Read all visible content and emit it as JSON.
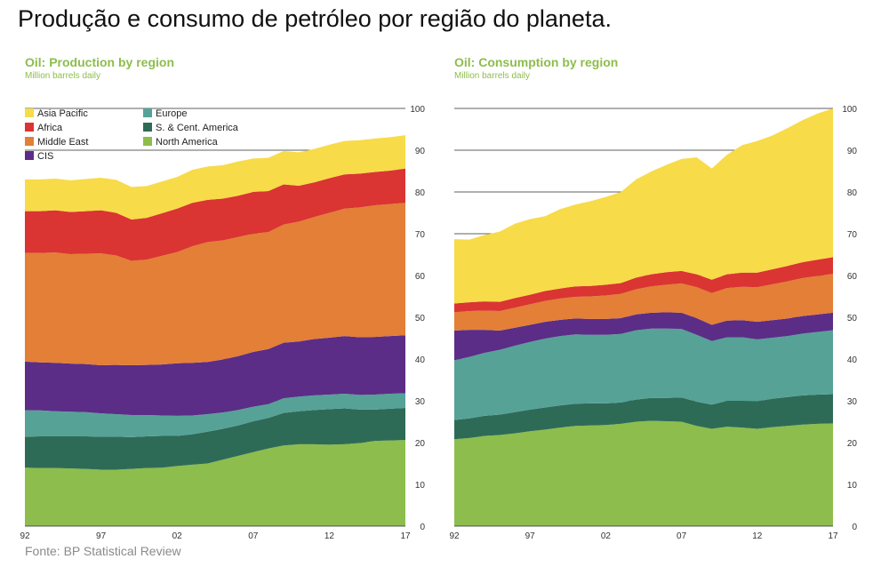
{
  "page": {
    "title": "Produção e consumo de petróleo por região do planeta.",
    "source": "Fonte: BP Statistical Review",
    "title_color": "#8DBD4C",
    "subtitle_color": "#8DBD4C"
  },
  "chart_data": [
    {
      "type": "area",
      "title": "Oil: Production by region",
      "subtitle": "Million barrels daily",
      "x": [
        1992,
        1993,
        1994,
        1995,
        1996,
        1997,
        1998,
        1999,
        2000,
        2001,
        2002,
        2003,
        2004,
        2005,
        2006,
        2007,
        2008,
        2009,
        2010,
        2011,
        2012,
        2013,
        2014,
        2015,
        2016,
        2017
      ],
      "x_tick_labels": [
        "92",
        "97",
        "02",
        "07",
        "12",
        "17"
      ],
      "x_tick_values": [
        1992,
        1997,
        2002,
        2007,
        2012,
        2017
      ],
      "ylim": [
        0,
        100
      ],
      "y_ticks": [
        0,
        10,
        20,
        30,
        40,
        50,
        60,
        70,
        80,
        90,
        100
      ],
      "y_axis_side": "right",
      "stacked": true,
      "legend_placement": "top-left",
      "legend_columns": [
        [
          "Asia Pacific",
          "Africa",
          "Middle East",
          "CIS"
        ],
        [
          "Europe",
          "S. & Cent. America",
          "North America"
        ]
      ],
      "series": [
        {
          "name": "North America",
          "color": "#8DBD4C",
          "values": [
            14.0,
            13.9,
            13.9,
            13.8,
            13.7,
            13.5,
            13.5,
            13.7,
            13.9,
            14.0,
            14.4,
            14.7,
            15.0,
            15.9,
            16.8,
            17.7,
            18.6,
            19.3,
            19.6,
            19.6,
            19.5,
            19.6,
            19.9,
            20.4,
            20.5,
            20.6
          ]
        },
        {
          "name": "S. & Cent. America",
          "color": "#2E6B57",
          "values": [
            7.4,
            7.6,
            7.6,
            7.7,
            7.8,
            7.9,
            7.9,
            7.6,
            7.6,
            7.6,
            7.2,
            7.3,
            7.6,
            7.4,
            7.3,
            7.4,
            7.3,
            7.8,
            7.9,
            8.2,
            8.5,
            8.6,
            8.0,
            7.5,
            7.6,
            7.7
          ]
        },
        {
          "name": "Europe",
          "color": "#56A297",
          "values": [
            6.3,
            6.2,
            6.0,
            5.9,
            5.8,
            5.6,
            5.4,
            5.3,
            5.1,
            4.9,
            4.8,
            4.5,
            4.2,
            3.9,
            3.7,
            3.5,
            3.3,
            3.5,
            3.5,
            3.5,
            3.5,
            3.5,
            3.5,
            3.6,
            3.6,
            3.5
          ]
        },
        {
          "name": "CIS",
          "color": "#5B2D87",
          "values": [
            11.7,
            11.5,
            11.6,
            11.5,
            11.5,
            11.5,
            11.8,
            11.9,
            12.0,
            12.2,
            12.6,
            12.6,
            12.5,
            12.7,
            12.9,
            13.1,
            13.2,
            13.3,
            13.2,
            13.5,
            13.6,
            13.8,
            13.8,
            13.8,
            13.8,
            13.9
          ]
        },
        {
          "name": "Middle East",
          "color": "#E37F36",
          "values": [
            26.0,
            26.2,
            26.4,
            26.2,
            26.4,
            26.8,
            26.2,
            25.0,
            25.2,
            26.0,
            26.6,
            27.9,
            28.7,
            28.5,
            28.5,
            28.3,
            28.0,
            28.3,
            28.7,
            29.2,
            29.9,
            30.5,
            31.1,
            31.5,
            31.6,
            31.7
          ]
        },
        {
          "name": "Africa",
          "color": "#DA3532",
          "values": [
            10.0,
            10.0,
            10.1,
            10.1,
            10.2,
            10.3,
            10.2,
            9.9,
            10.0,
            10.2,
            10.4,
            10.4,
            10.1,
            10.0,
            9.9,
            10.0,
            9.8,
            9.6,
            8.6,
            8.3,
            8.3,
            8.2,
            8.1,
            8.0,
            8.0,
            8.2
          ]
        },
        {
          "name": "Asia Pacific",
          "color": "#F7DB48",
          "values": [
            7.6,
            7.6,
            7.6,
            7.6,
            7.7,
            7.8,
            7.9,
            7.8,
            7.6,
            7.6,
            7.6,
            7.9,
            8.0,
            8.0,
            8.2,
            8.0,
            8.0,
            8.0,
            8.0,
            8.0,
            8.0,
            8.0,
            8.0,
            8.0,
            8.0,
            8.0
          ]
        }
      ]
    },
    {
      "type": "area",
      "title": "Oil: Consumption by region",
      "subtitle": "Million barrels daily",
      "x": [
        1992,
        1993,
        1994,
        1995,
        1996,
        1997,
        1998,
        1999,
        2000,
        2001,
        2002,
        2003,
        2004,
        2005,
        2006,
        2007,
        2008,
        2009,
        2010,
        2011,
        2012,
        2013,
        2014,
        2015,
        2016,
        2017
      ],
      "x_tick_labels": [
        "92",
        "97",
        "02",
        "07",
        "12",
        "17"
      ],
      "x_tick_values": [
        1992,
        1997,
        2002,
        2007,
        2012,
        2017
      ],
      "ylim": [
        0,
        100
      ],
      "y_ticks": [
        0,
        10,
        20,
        30,
        40,
        50,
        60,
        70,
        80,
        90,
        100
      ],
      "y_axis_side": "right",
      "stacked": true,
      "series": [
        {
          "name": "North America",
          "color": "#8DBD4C",
          "values": [
            20.8,
            21.1,
            21.6,
            21.8,
            22.2,
            22.7,
            23.1,
            23.6,
            24.0,
            24.1,
            24.2,
            24.5,
            25.0,
            25.2,
            25.1,
            25.0,
            24.0,
            23.3,
            23.8,
            23.6,
            23.3,
            23.7,
            24.0,
            24.3,
            24.5,
            24.6
          ]
        },
        {
          "name": "S. & Cent. America",
          "color": "#2E6B57",
          "values": [
            4.6,
            4.7,
            4.8,
            4.9,
            5.1,
            5.2,
            5.3,
            5.3,
            5.3,
            5.3,
            5.2,
            5.1,
            5.3,
            5.5,
            5.6,
            5.8,
            5.8,
            5.8,
            6.2,
            6.4,
            6.6,
            6.8,
            6.9,
            7.0,
            7.0,
            7.0
          ]
        },
        {
          "name": "Europe",
          "color": "#56A297",
          "values": [
            14.3,
            14.7,
            15.1,
            15.5,
            15.9,
            16.2,
            16.5,
            16.6,
            16.6,
            16.4,
            16.4,
            16.4,
            16.6,
            16.6,
            16.6,
            16.4,
            16.0,
            15.2,
            15.2,
            15.2,
            14.8,
            14.6,
            14.6,
            14.8,
            15.0,
            15.3
          ]
        },
        {
          "name": "CIS",
          "color": "#5B2D87",
          "values": [
            7.1,
            6.5,
            5.5,
            4.6,
            4.3,
            4.1,
            4.0,
            3.9,
            3.8,
            3.8,
            3.8,
            3.8,
            3.8,
            3.8,
            3.9,
            3.9,
            4.0,
            3.9,
            4.0,
            4.1,
            4.2,
            4.2,
            4.2,
            4.2,
            4.2,
            4.2
          ]
        },
        {
          "name": "Middle East",
          "color": "#E37F36",
          "values": [
            4.4,
            4.5,
            4.6,
            4.7,
            4.8,
            4.9,
            5.0,
            5.1,
            5.2,
            5.4,
            5.6,
            5.8,
            6.0,
            6.3,
            6.6,
            7.0,
            7.4,
            7.6,
            7.8,
            8.0,
            8.3,
            8.6,
            8.9,
            9.1,
            9.2,
            9.3
          ]
        },
        {
          "name": "Africa",
          "color": "#DA3532",
          "values": [
            2.1,
            2.1,
            2.2,
            2.2,
            2.3,
            2.3,
            2.4,
            2.4,
            2.5,
            2.5,
            2.6,
            2.6,
            2.8,
            2.9,
            3.0,
            3.0,
            3.1,
            3.2,
            3.3,
            3.4,
            3.5,
            3.6,
            3.7,
            3.8,
            3.9,
            4.0
          ]
        },
        {
          "name": "Asia Pacific",
          "color": "#F7DB48",
          "values": [
            15.4,
            15.0,
            15.9,
            16.8,
            17.8,
            18.1,
            17.9,
            19.0,
            19.6,
            20.3,
            21.0,
            21.8,
            23.5,
            24.6,
            25.7,
            26.8,
            28.0,
            26.6,
            28.6,
            30.5,
            31.5,
            32.0,
            33.0,
            34.0,
            35.0,
            35.6
          ]
        }
      ]
    }
  ]
}
